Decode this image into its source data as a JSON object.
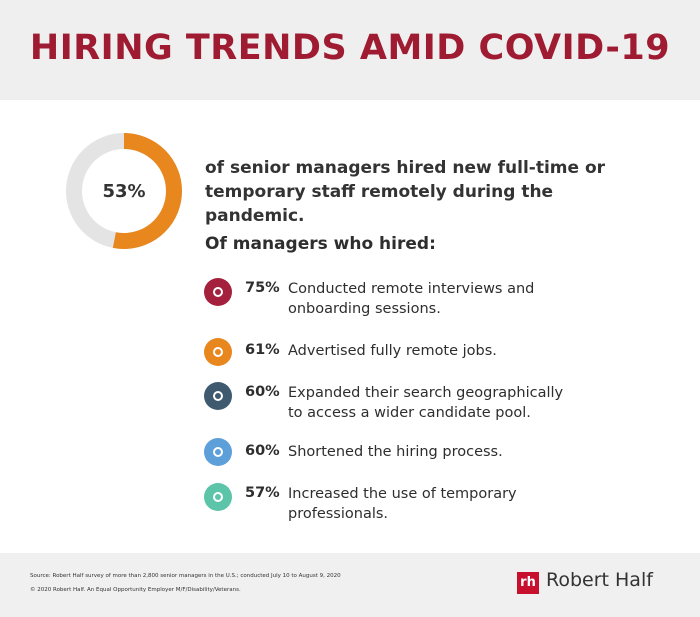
{
  "header": {
    "title": "HIRING TRENDS AMID COVID-19"
  },
  "headline": {
    "value": 53,
    "label": "53%",
    "text": "of senior managers hired new full-time or temporary staff remotely during the pandemic."
  },
  "subheading": "Of managers who hired:",
  "items": [
    {
      "percent": "75%",
      "text": "Conducted remote interviews and onboarding sessions."
    },
    {
      "percent": "61%",
      "text": "Advertised fully remote jobs."
    },
    {
      "percent": "60%",
      "text": "Expanded their search geographically to access a wider candidate pool."
    },
    {
      "percent": "60%",
      "text": "Shortened the hiring process."
    },
    {
      "percent": "57%",
      "text": "Increased the use of temporary professionals."
    }
  ],
  "footer": {
    "source": "Source: Robert Half survey of more than 2,800 senior managers in the U.S.; conducted July 10 to August 9, 2020",
    "copyright": "© 2020 Robert Half. An Equal Opportunity Employer M/F/Disability/Veterans.",
    "brand_mark": "rh",
    "brand": "Robert Half"
  }
}
